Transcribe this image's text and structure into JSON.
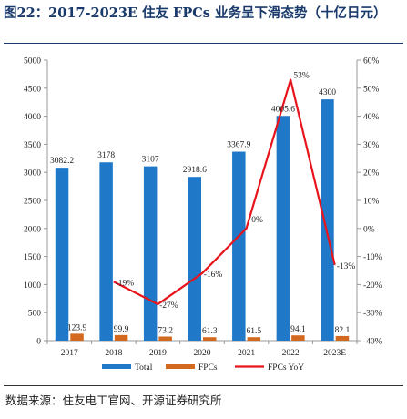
{
  "title": "图22：2017-2023E 住友 FPCs 业务呈下滑态势（十亿日元）",
  "source": "数据来源：住友电工官网、开源证券研究所",
  "colors": {
    "total_bar": "#1f78c8",
    "fpcs_bar": "#d2691e",
    "yoy_line": "#e8141c",
    "axis": "#999999",
    "title": "#1a3a6b"
  },
  "chart_data": {
    "type": "bar",
    "categories": [
      "2017",
      "2018",
      "2019",
      "2020",
      "2021",
      "2022",
      "2023E"
    ],
    "series": [
      {
        "name": "Total",
        "type": "bar",
        "axis": "left",
        "values": [
          3082.2,
          3178,
          3107,
          2918.6,
          3367.9,
          4005.6,
          4300
        ],
        "labels": [
          "3082.2",
          "3178",
          "3107",
          "2918.6",
          "3367.9",
          "4005.6",
          "4300"
        ]
      },
      {
        "name": "FPCs",
        "type": "bar",
        "axis": "left",
        "values": [
          123.9,
          99.9,
          73.2,
          61.3,
          61.5,
          94.1,
          82.1
        ],
        "labels": [
          "123.9",
          "99.9",
          "73.2",
          "61.3",
          "61.5",
          "94.1",
          "82.1"
        ]
      },
      {
        "name": "FPCs YoY",
        "type": "line",
        "axis": "right",
        "values": [
          null,
          -19,
          -27,
          -16,
          0,
          53,
          -13
        ],
        "labels": [
          "",
          "-19%",
          "-27%",
          "-16%",
          "0%",
          "53%",
          "-13%"
        ]
      }
    ],
    "y_left": {
      "min": 0,
      "max": 5000,
      "ticks": [
        "0",
        "500",
        "1000",
        "1500",
        "2000",
        "2500",
        "3000",
        "3500",
        "4000",
        "4500",
        "5000"
      ]
    },
    "y_right": {
      "min": -40,
      "max": 60,
      "ticks": [
        "-40%",
        "-30%",
        "-20%",
        "-10%",
        "0%",
        "10%",
        "20%",
        "30%",
        "40%",
        "50%",
        "60%"
      ]
    },
    "grid": false,
    "legend": "bottom"
  }
}
